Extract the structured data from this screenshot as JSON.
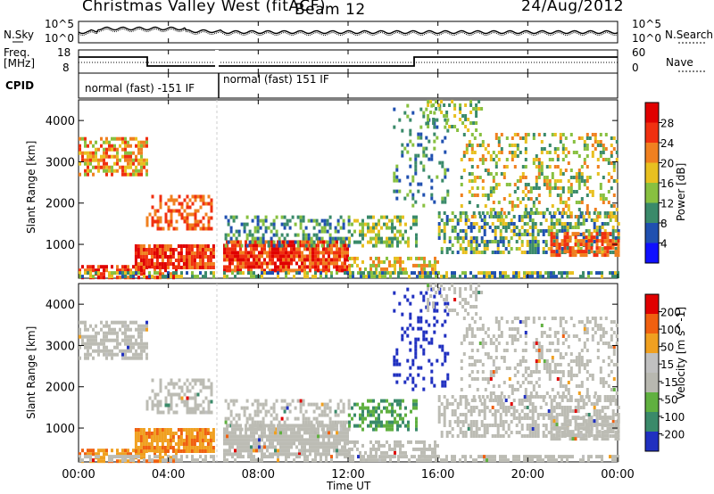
{
  "header": {
    "title": "Christmas Valley West (fitACF)",
    "beam": "Beam 12",
    "date": "24/Aug/2012"
  },
  "top_panels": {
    "nsky_label": "N.Sky",
    "nsearch_label": "N.Search",
    "freq_label_1": "Freq.",
    "freq_label_2": "[MHz]",
    "nave_label": "Nave",
    "cpid_label": "CPID",
    "noise_ticks_left": [
      "10^5",
      "10^0"
    ],
    "noise_ticks_right": [
      "10^5",
      "10^0"
    ],
    "freq_ticks_left": [
      "18",
      "8"
    ],
    "freq_ticks_right": [
      "60",
      "0"
    ],
    "cpid_segments": [
      "normal (fast) -151 IF",
      "normal (fast) 151 IF"
    ]
  },
  "chart_data": [
    {
      "type": "heatmap",
      "name": "power",
      "ylabel": "Slant Range [km]",
      "yticks": [
        "1000",
        "2000",
        "3000",
        "4000"
      ],
      "ylim": [
        180,
        4500
      ],
      "xlim": [
        0,
        24
      ],
      "colorbar_label": "Power [dB]",
      "colorbar_ticks": [
        "4",
        "8",
        "12",
        "16",
        "20",
        "24",
        "28"
      ],
      "colorbar_colors": [
        "#1010ff",
        "#2050b0",
        "#3a8a6a",
        "#88c040",
        "#e8c020",
        "#f08020",
        "#f03010",
        "#e00000"
      ]
    },
    {
      "type": "heatmap",
      "name": "velocity",
      "ylabel": "Slant Range [km]",
      "yticks": [
        "1000",
        "2000",
        "3000",
        "4000"
      ],
      "ylim": [
        180,
        4500
      ],
      "xlim": [
        0,
        24
      ],
      "colorbar_label": "Velocity [m s^-1]",
      "colorbar_ticks": [
        "200",
        "100",
        "50",
        "15",
        "-15",
        "-50",
        "-100",
        "-200"
      ],
      "colorbar_colors": [
        "#2030c0",
        "#3a8a6a",
        "#60b040",
        "#b8b8b0",
        "#c0c0c0",
        "#f0a020",
        "#f06010",
        "#e00000"
      ]
    }
  ],
  "x_axis": {
    "label": "Time UT",
    "ticks": [
      "00:00",
      "04:00",
      "08:00",
      "12:00",
      "16:00",
      "20:00",
      "00:00"
    ]
  }
}
